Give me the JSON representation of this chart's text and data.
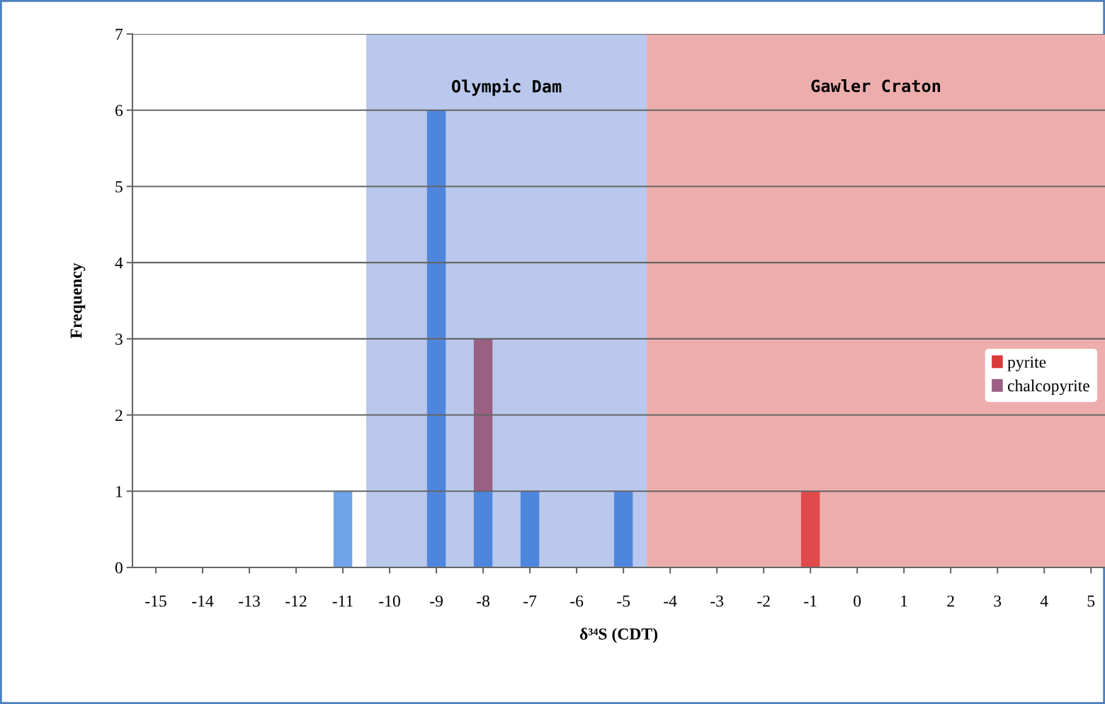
{
  "chart_data": {
    "type": "bar",
    "stacked": true,
    "xlabel": "δ³⁴S (CDT)",
    "ylabel": "Frequency",
    "x": [
      -11,
      -9,
      -8,
      -7,
      -5,
      -1
    ],
    "series": [
      {
        "name": "pyrite",
        "color": "#d93a3a",
        "colors": [
          "#6fa3ea",
          "#4f86dd",
          "#4f86dd",
          "#4f86dd",
          "#4f86dd",
          "#e04a4a"
        ],
        "values": [
          1,
          6,
          1,
          1,
          1,
          1
        ]
      },
      {
        "name": "chalcopyrite",
        "color": "#9a5f82",
        "values": [
          null,
          null,
          2,
          null,
          null,
          null
        ]
      }
    ],
    "bands": [
      {
        "axis": "x",
        "from": -10.5,
        "to": -4.5,
        "label": "Olympic Dam",
        "color": "#b9c8ec"
      },
      {
        "axis": "x",
        "from": -4.5,
        "to": 5.5,
        "label": "Gawler Craton",
        "color": "#edadad"
      }
    ],
    "xlim": [
      -15.5,
      5.3
    ],
    "xticks": [
      -15,
      -14,
      -13,
      -12,
      -11,
      -10,
      -9,
      -8,
      -7,
      -6,
      -5,
      -4,
      -3,
      -2,
      -1,
      0,
      1,
      2,
      3,
      4,
      5
    ],
    "ylim": [
      0,
      7
    ],
    "yticks": [
      0,
      1,
      2,
      3,
      4,
      5,
      6,
      7
    ],
    "grid": "y",
    "legend": "right"
  }
}
